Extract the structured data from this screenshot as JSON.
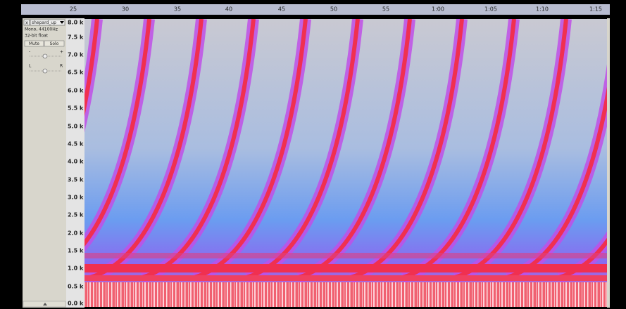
{
  "ruler": {
    "ticks": [
      "25",
      "30",
      "35",
      "40",
      "45",
      "50",
      "55",
      "1:00",
      "1:05",
      "1:10",
      "1:15"
    ]
  },
  "track": {
    "close": "x",
    "name": "shepard_up",
    "info": [
      "Mono, 44100Hz",
      "32-bit float"
    ],
    "buttons": [
      "Mute",
      "Solo"
    ],
    "gain": [
      "-",
      "+"
    ],
    "pan": [
      "L",
      "R"
    ]
  },
  "frequency_axis": {
    "labels": [
      "8.0 k",
      "7.5 k",
      "7.0 k",
      "6.5 k",
      "6.0 k",
      "5.5 k",
      "5.0 k",
      "4.5 k",
      "4.0 k",
      "3.5 k",
      "3.0 k",
      "2.5 k",
      "2.0 k",
      "1.5 k",
      "1.0 k",
      "0.5 k",
      "0.0 k"
    ]
  }
}
